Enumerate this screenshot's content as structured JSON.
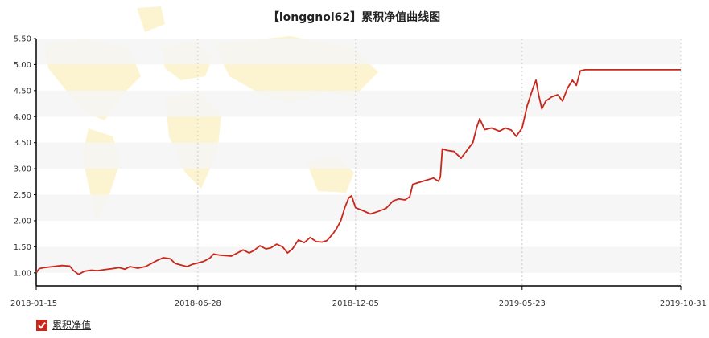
{
  "colors": {
    "line": "#c8281c",
    "band": "#f5f5f5",
    "axis": "#000000",
    "grid": "#cccccc",
    "map": "#fbf1c4"
  },
  "icons": {
    "legend_check": "checkmark-icon",
    "background": "world-map"
  },
  "chart_data": {
    "type": "line",
    "title": "【longgnol62】累积净值曲线图",
    "xlabel": "",
    "ylabel": "",
    "x_ticks": [
      "2018-01-15",
      "2018-06-28",
      "2018-12-05",
      "2019-05-23",
      "2019-10-31"
    ],
    "y_ticks": [
      "1.00",
      "1.50",
      "2.00",
      "2.50",
      "3.00",
      "3.50",
      "4.00",
      "4.50",
      "5.00",
      "5.50"
    ],
    "xlim": [
      "2018-01-15",
      "2019-10-31"
    ],
    "ylim": [
      0.75,
      5.5
    ],
    "grid": "vertical dotted at x ticks, alternating horizontal bands",
    "legend_position": "bottom-left",
    "series": [
      {
        "name": "累积净值",
        "points": [
          [
            "2018-01-15",
            1.0
          ],
          [
            "2018-01-18",
            1.08
          ],
          [
            "2018-01-23",
            1.1
          ],
          [
            "2018-02-01",
            1.12
          ],
          [
            "2018-02-10",
            1.14
          ],
          [
            "2018-02-18",
            1.13
          ],
          [
            "2018-02-22",
            1.04
          ],
          [
            "2018-02-27",
            0.97
          ],
          [
            "2018-03-05",
            1.03
          ],
          [
            "2018-03-12",
            1.05
          ],
          [
            "2018-03-18",
            1.04
          ],
          [
            "2018-03-25",
            1.06
          ],
          [
            "2018-04-02",
            1.08
          ],
          [
            "2018-04-09",
            1.1
          ],
          [
            "2018-04-15",
            1.07
          ],
          [
            "2018-04-20",
            1.12
          ],
          [
            "2018-04-28",
            1.09
          ],
          [
            "2018-05-06",
            1.12
          ],
          [
            "2018-05-12",
            1.18
          ],
          [
            "2018-05-18",
            1.24
          ],
          [
            "2018-05-24",
            1.29
          ],
          [
            "2018-05-31",
            1.27
          ],
          [
            "2018-06-05",
            1.18
          ],
          [
            "2018-06-11",
            1.15
          ],
          [
            "2018-06-17",
            1.12
          ],
          [
            "2018-06-22",
            1.16
          ],
          [
            "2018-06-28",
            1.19
          ],
          [
            "2018-07-04",
            1.22
          ],
          [
            "2018-07-10",
            1.28
          ],
          [
            "2018-07-14",
            1.36
          ],
          [
            "2018-07-20",
            1.34
          ],
          [
            "2018-07-26",
            1.33
          ],
          [
            "2018-08-01",
            1.32
          ],
          [
            "2018-08-07",
            1.38
          ],
          [
            "2018-08-13",
            1.44
          ],
          [
            "2018-08-19",
            1.38
          ],
          [
            "2018-08-24",
            1.43
          ],
          [
            "2018-08-30",
            1.52
          ],
          [
            "2018-09-05",
            1.46
          ],
          [
            "2018-09-10",
            1.48
          ],
          [
            "2018-09-16",
            1.55
          ],
          [
            "2018-09-22",
            1.5
          ],
          [
            "2018-09-27",
            1.38
          ],
          [
            "2018-10-02",
            1.46
          ],
          [
            "2018-10-08",
            1.63
          ],
          [
            "2018-10-14",
            1.58
          ],
          [
            "2018-10-20",
            1.68
          ],
          [
            "2018-10-26",
            1.6
          ],
          [
            "2018-11-01",
            1.59
          ],
          [
            "2018-11-06",
            1.62
          ],
          [
            "2018-11-12",
            1.75
          ],
          [
            "2018-11-16",
            1.86
          ],
          [
            "2018-11-20",
            2.0
          ],
          [
            "2018-11-24",
            2.25
          ],
          [
            "2018-11-28",
            2.44
          ],
          [
            "2018-12-01",
            2.48
          ],
          [
            "2018-12-05",
            2.25
          ],
          [
            "2018-12-12",
            2.2
          ],
          [
            "2018-12-20",
            2.13
          ],
          [
            "2018-12-28",
            2.18
          ],
          [
            "2019-01-05",
            2.24
          ],
          [
            "2019-01-12",
            2.38
          ],
          [
            "2019-01-18",
            2.42
          ],
          [
            "2019-01-24",
            2.4
          ],
          [
            "2019-01-29",
            2.46
          ],
          [
            "2019-02-01",
            2.7
          ],
          [
            "2019-02-08",
            2.74
          ],
          [
            "2019-02-15",
            2.78
          ],
          [
            "2019-02-22",
            2.82
          ],
          [
            "2019-02-27",
            2.76
          ],
          [
            "2019-03-01",
            2.84
          ],
          [
            "2019-03-03",
            3.38
          ],
          [
            "2019-03-08",
            3.35
          ],
          [
            "2019-03-15",
            3.33
          ],
          [
            "2019-03-22",
            3.2
          ],
          [
            "2019-03-28",
            3.35
          ],
          [
            "2019-04-03",
            3.5
          ],
          [
            "2019-04-07",
            3.8
          ],
          [
            "2019-04-10",
            3.96
          ],
          [
            "2019-04-15",
            3.75
          ],
          [
            "2019-04-22",
            3.78
          ],
          [
            "2019-04-30",
            3.72
          ],
          [
            "2019-05-06",
            3.78
          ],
          [
            "2019-05-12",
            3.74
          ],
          [
            "2019-05-17",
            3.62
          ],
          [
            "2019-05-23",
            3.78
          ],
          [
            "2019-05-28",
            4.2
          ],
          [
            "2019-06-03",
            4.55
          ],
          [
            "2019-06-06",
            4.7
          ],
          [
            "2019-06-09",
            4.4
          ],
          [
            "2019-06-12",
            4.15
          ],
          [
            "2019-06-16",
            4.3
          ],
          [
            "2019-06-22",
            4.38
          ],
          [
            "2019-06-28",
            4.42
          ],
          [
            "2019-07-03",
            4.3
          ],
          [
            "2019-07-08",
            4.55
          ],
          [
            "2019-07-13",
            4.7
          ],
          [
            "2019-07-17",
            4.6
          ],
          [
            "2019-07-21",
            4.88
          ],
          [
            "2019-07-26",
            4.9
          ],
          [
            "2019-10-31",
            4.9
          ]
        ]
      }
    ]
  }
}
